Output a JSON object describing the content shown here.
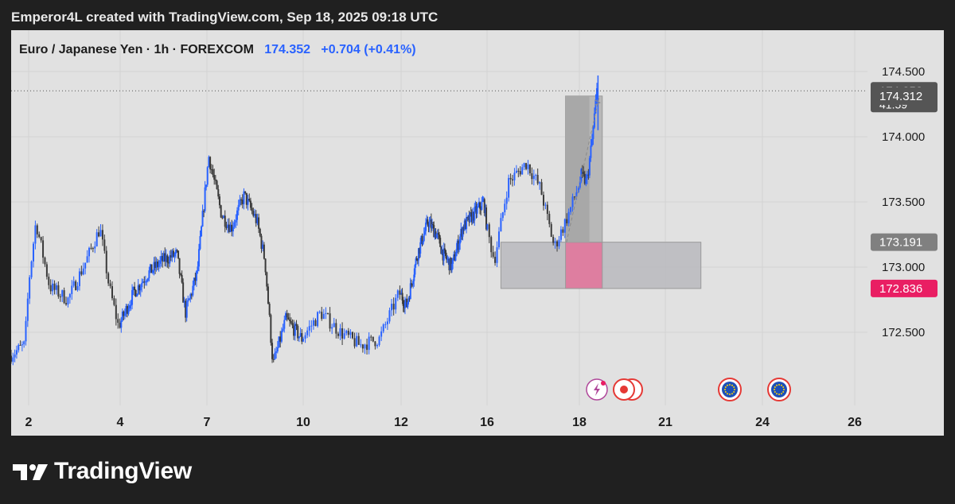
{
  "caption": "Emperor4L created with TradingView.com, Sep 18, 2025 09:18 UTC",
  "header": {
    "symbol": "Euro / Japanese Yen · 1h · FOREXCOM",
    "price": "174.352",
    "change": "+0.704 (+0.41%)"
  },
  "footer": {
    "brand": "TradingView"
  },
  "colors": {
    "up": "#2962ff",
    "down": "#3a3a3a",
    "panel_bg": "#e1e1e1",
    "page_bg": "#202020",
    "zone_gray": "#b9b9bf",
    "zone_pink": "#e0708f",
    "tag_dark": "#555555",
    "tag_gray": "#808080",
    "tag_red": "#e91e63"
  },
  "events": {
    "icons": [
      "lightning-event-icon",
      "target-event-icon",
      "eu-flag-event-icon",
      "eu-flag-event-icon"
    ],
    "x_labels": [
      "18",
      "18",
      "23",
      "24"
    ]
  },
  "chart_data": {
    "type": "candlestick",
    "title": "Euro / Japanese Yen · 1h · FOREXCOM",
    "xlabel": "",
    "ylabel": "",
    "x_ticks": [
      "2",
      "4",
      "7",
      "10",
      "12",
      "16",
      "18",
      "21",
      "24",
      "26"
    ],
    "y_ticks": [
      "172.500",
      "173.000",
      "173.500",
      "174.000",
      "174.500"
    ],
    "ylim": [
      172.05,
      174.78
    ],
    "grid": true,
    "price_tags": [
      {
        "value": 174.352,
        "label": "174.352",
        "sublabel": "41:59",
        "style": "dark"
      },
      {
        "value": 174.312,
        "label": "174.312",
        "style": "dark"
      },
      {
        "value": 173.191,
        "label": "173.191",
        "style": "gray"
      },
      {
        "value": 172.836,
        "label": "172.836",
        "style": "red"
      }
    ],
    "current_price_line": 174.352,
    "zones": [
      {
        "name": "demand-zone",
        "from_day": 16.3,
        "to_day": 22.1,
        "low": 172.836,
        "high": 173.191,
        "color": "gray"
      },
      {
        "name": "long-entry-zone",
        "from_day": 17.7,
        "to_day": 18.8,
        "low": 172.836,
        "high": 173.191,
        "color": "pink"
      },
      {
        "name": "long-target-zone",
        "from_day": 17.7,
        "to_day": 18.8,
        "low": 173.191,
        "high": 174.312,
        "color": "gray-dark"
      }
    ],
    "path_keypoints": [
      {
        "day": 1.6,
        "price": 172.32
      },
      {
        "day": 1.95,
        "price": 172.4
      },
      {
        "day": 2.05,
        "price": 172.9
      },
      {
        "day": 2.2,
        "price": 173.35
      },
      {
        "day": 2.5,
        "price": 172.85
      },
      {
        "day": 2.9,
        "price": 172.75
      },
      {
        "day": 3.3,
        "price": 173.05
      },
      {
        "day": 3.6,
        "price": 173.3
      },
      {
        "day": 3.8,
        "price": 172.85
      },
      {
        "day": 4.0,
        "price": 172.55
      },
      {
        "day": 4.5,
        "price": 172.8
      },
      {
        "day": 5.0,
        "price": 172.95
      },
      {
        "day": 5.5,
        "price": 173.05
      },
      {
        "day": 6.0,
        "price": 173.1
      },
      {
        "day": 6.3,
        "price": 172.65
      },
      {
        "day": 6.7,
        "price": 172.95
      },
      {
        "day": 7.1,
        "price": 173.85
      },
      {
        "day": 7.5,
        "price": 173.4
      },
      {
        "day": 7.8,
        "price": 173.3
      },
      {
        "day": 8.2,
        "price": 173.55
      },
      {
        "day": 8.6,
        "price": 173.35
      },
      {
        "day": 8.85,
        "price": 173.05
      },
      {
        "day": 9.1,
        "price": 172.25
      },
      {
        "day": 9.5,
        "price": 172.6
      },
      {
        "day": 10.0,
        "price": 172.45
      },
      {
        "day": 10.4,
        "price": 172.65
      },
      {
        "day": 10.8,
        "price": 172.5
      },
      {
        "day": 11.2,
        "price": 172.4
      },
      {
        "day": 11.6,
        "price": 172.45
      },
      {
        "day": 12.0,
        "price": 172.8
      },
      {
        "day": 12.3,
        "price": 172.7
      },
      {
        "day": 12.8,
        "price": 173.1
      },
      {
        "day": 13.3,
        "price": 173.35
      },
      {
        "day": 13.7,
        "price": 173.25
      },
      {
        "day": 14.0,
        "price": 173.1
      },
      {
        "day": 14.4,
        "price": 173.0
      },
      {
        "day": 14.9,
        "price": 173.3
      },
      {
        "day": 15.4,
        "price": 173.4
      },
      {
        "day": 15.9,
        "price": 173.5
      },
      {
        "day": 16.2,
        "price": 173.05
      },
      {
        "day": 16.5,
        "price": 173.65
      },
      {
        "day": 16.9,
        "price": 173.8
      },
      {
        "day": 17.2,
        "price": 173.6
      },
      {
        "day": 17.5,
        "price": 173.15
      },
      {
        "day": 17.8,
        "price": 173.4
      },
      {
        "day": 18.1,
        "price": 173.7
      },
      {
        "day": 18.3,
        "price": 173.65
      },
      {
        "day": 18.5,
        "price": 174.0
      },
      {
        "day": 18.65,
        "price": 174.35
      }
    ],
    "session_extremes": {
      "high": 174.47,
      "low": 172.2
    }
  }
}
